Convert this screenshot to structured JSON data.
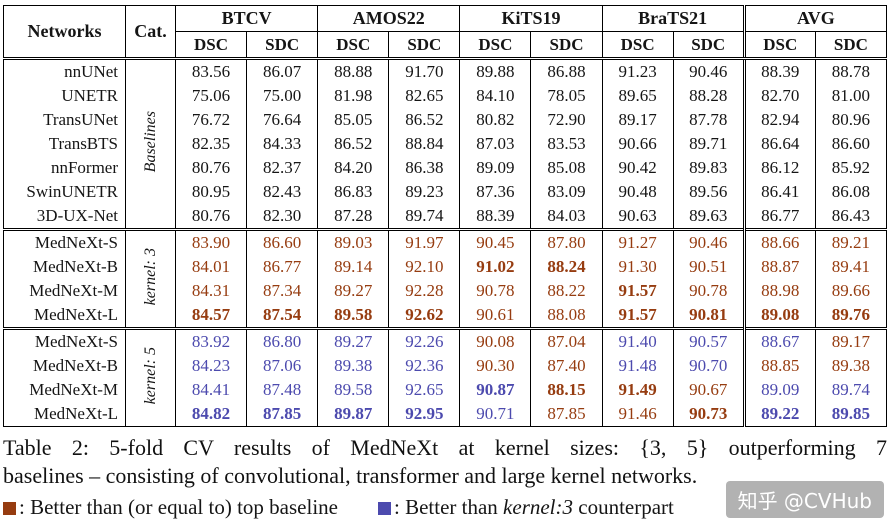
{
  "colors": {
    "maroon": "#963c10",
    "blue": "#4c4aae"
  },
  "table": {
    "header": {
      "networks": "Networks",
      "cat": "Cat.",
      "groups": [
        "BTCV",
        "AMOS22",
        "KiTS19",
        "BraTS21",
        "AVG"
      ],
      "metrics": [
        "DSC",
        "SDC"
      ]
    },
    "blocks": [
      {
        "cat": "Baselines",
        "rows": [
          {
            "net": "nnUNet",
            "cells": [
              [
                "83.56"
              ],
              [
                "86.07"
              ],
              [
                "88.88"
              ],
              [
                "91.70"
              ],
              [
                "89.88"
              ],
              [
                "86.88"
              ],
              [
                "91.23"
              ],
              [
                "90.46"
              ],
              [
                "88.39"
              ],
              [
                "88.78"
              ]
            ]
          },
          {
            "net": "UNETR",
            "cells": [
              [
                "75.06"
              ],
              [
                "75.00"
              ],
              [
                "81.98"
              ],
              [
                "82.65"
              ],
              [
                "84.10"
              ],
              [
                "78.05"
              ],
              [
                "89.65"
              ],
              [
                "88.28"
              ],
              [
                "82.70"
              ],
              [
                "81.00"
              ]
            ]
          },
          {
            "net": "TransUNet",
            "cells": [
              [
                "76.72"
              ],
              [
                "76.64"
              ],
              [
                "85.05"
              ],
              [
                "86.52"
              ],
              [
                "80.82"
              ],
              [
                "72.90"
              ],
              [
                "89.17"
              ],
              [
                "87.78"
              ],
              [
                "82.94"
              ],
              [
                "80.96"
              ]
            ]
          },
          {
            "net": "TransBTS",
            "cells": [
              [
                "82.35"
              ],
              [
                "84.33"
              ],
              [
                "86.52"
              ],
              [
                "88.84"
              ],
              [
                "87.03"
              ],
              [
                "83.53"
              ],
              [
                "90.66"
              ],
              [
                "89.71"
              ],
              [
                "86.64"
              ],
              [
                "86.60"
              ]
            ]
          },
          {
            "net": "nnFormer",
            "cells": [
              [
                "80.76"
              ],
              [
                "82.37"
              ],
              [
                "84.20"
              ],
              [
                "86.38"
              ],
              [
                "89.09"
              ],
              [
                "85.08"
              ],
              [
                "90.42"
              ],
              [
                "89.83"
              ],
              [
                "86.12"
              ],
              [
                "85.92"
              ]
            ]
          },
          {
            "net": "SwinUNETR",
            "cells": [
              [
                "80.95"
              ],
              [
                "82.43"
              ],
              [
                "86.83"
              ],
              [
                "89.23"
              ],
              [
                "87.36"
              ],
              [
                "83.09"
              ],
              [
                "90.48"
              ],
              [
                "89.56"
              ],
              [
                "86.41"
              ],
              [
                "86.08"
              ]
            ]
          },
          {
            "net": "3D-UX-Net",
            "cells": [
              [
                "80.76"
              ],
              [
                "82.30"
              ],
              [
                "87.28"
              ],
              [
                "89.74"
              ],
              [
                "88.39"
              ],
              [
                "84.03"
              ],
              [
                "90.63"
              ],
              [
                "89.63"
              ],
              [
                "86.77"
              ],
              [
                "86.43"
              ]
            ]
          }
        ]
      },
      {
        "cat": "kernel: 3",
        "rows": [
          {
            "net": "MedNeXt-S",
            "cells": [
              [
                "83.90",
                "mr",
                0
              ],
              [
                "86.60",
                "mr",
                0
              ],
              [
                "89.03",
                "mr",
                0
              ],
              [
                "91.97",
                "mr",
                0
              ],
              [
                "90.45",
                "mr",
                0
              ],
              [
                "87.80",
                "mr",
                0
              ],
              [
                "91.27",
                "mr",
                0
              ],
              [
                "90.46",
                "mr",
                0
              ],
              [
                "88.66",
                "mr",
                0
              ],
              [
                "89.21",
                "mr",
                0
              ]
            ]
          },
          {
            "net": "MedNeXt-B",
            "cells": [
              [
                "84.01",
                "mr",
                0
              ],
              [
                "86.77",
                "mr",
                0
              ],
              [
                "89.14",
                "mr",
                0
              ],
              [
                "92.10",
                "mr",
                0
              ],
              [
                "91.02",
                "mr",
                1
              ],
              [
                "88.24",
                "mr",
                1
              ],
              [
                "91.30",
                "mr",
                0
              ],
              [
                "90.51",
                "mr",
                0
              ],
              [
                "88.87",
                "mr",
                0
              ],
              [
                "89.41",
                "mr",
                0
              ]
            ]
          },
          {
            "net": "MedNeXt-M",
            "cells": [
              [
                "84.31",
                "mr",
                0
              ],
              [
                "87.34",
                "mr",
                0
              ],
              [
                "89.27",
                "mr",
                0
              ],
              [
                "92.28",
                "mr",
                0
              ],
              [
                "90.78",
                "mr",
                0
              ],
              [
                "88.22",
                "mr",
                0
              ],
              [
                "91.57",
                "mr",
                1
              ],
              [
                "90.78",
                "mr",
                0
              ],
              [
                "88.98",
                "mr",
                0
              ],
              [
                "89.66",
                "mr",
                0
              ]
            ]
          },
          {
            "net": "MedNeXt-L",
            "cells": [
              [
                "84.57",
                "mr",
                1
              ],
              [
                "87.54",
                "mr",
                1
              ],
              [
                "89.58",
                "mr",
                1
              ],
              [
                "92.62",
                "mr",
                1
              ],
              [
                "90.61",
                "mr",
                0
              ],
              [
                "88.08",
                "mr",
                0
              ],
              [
                "91.57",
                "mr",
                1
              ],
              [
                "90.81",
                "mr",
                1
              ],
              [
                "89.08",
                "mr",
                1
              ],
              [
                "89.76",
                "mr",
                1
              ]
            ]
          }
        ]
      },
      {
        "cat": "kernel: 5",
        "rows": [
          {
            "net": "MedNeXt-S",
            "cells": [
              [
                "83.92",
                "bl",
                0
              ],
              [
                "86.80",
                "bl",
                0
              ],
              [
                "89.27",
                "bl",
                0
              ],
              [
                "92.26",
                "bl",
                0
              ],
              [
                "90.08",
                "mr",
                0
              ],
              [
                "87.04",
                "mr",
                0
              ],
              [
                "91.40",
                "bl",
                0
              ],
              [
                "90.57",
                "bl",
                0
              ],
              [
                "88.67",
                "bl",
                0
              ],
              [
                "89.17",
                "mr",
                0
              ]
            ]
          },
          {
            "net": "MedNeXt-B",
            "cells": [
              [
                "84.23",
                "bl",
                0
              ],
              [
                "87.06",
                "bl",
                0
              ],
              [
                "89.38",
                "bl",
                0
              ],
              [
                "92.36",
                "bl",
                0
              ],
              [
                "90.30",
                "mr",
                0
              ],
              [
                "87.40",
                "mr",
                0
              ],
              [
                "91.48",
                "bl",
                0
              ],
              [
                "90.70",
                "bl",
                0
              ],
              [
                "88.85",
                "mr",
                0
              ],
              [
                "89.38",
                "mr",
                0
              ]
            ]
          },
          {
            "net": "MedNeXt-M",
            "cells": [
              [
                "84.41",
                "bl",
                0
              ],
              [
                "87.48",
                "bl",
                0
              ],
              [
                "89.58",
                "bl",
                0
              ],
              [
                "92.65",
                "bl",
                0
              ],
              [
                "90.87",
                "bl",
                1
              ],
              [
                "88.15",
                "mr",
                1
              ],
              [
                "91.49",
                "mr",
                1
              ],
              [
                "90.67",
                "mr",
                0
              ],
              [
                "89.09",
                "bl",
                0
              ],
              [
                "89.74",
                "bl",
                0
              ]
            ]
          },
          {
            "net": "MedNeXt-L",
            "cells": [
              [
                "84.82",
                "bl",
                1
              ],
              [
                "87.85",
                "bl",
                1
              ],
              [
                "89.87",
                "bl",
                1
              ],
              [
                "92.95",
                "bl",
                1
              ],
              [
                "90.71",
                "bl",
                0
              ],
              [
                "87.85",
                "mr",
                0
              ],
              [
                "91.46",
                "mr",
                0
              ],
              [
                "90.73",
                "mr",
                1
              ],
              [
                "89.22",
                "bl",
                1
              ],
              [
                "89.85",
                "bl",
                1
              ]
            ]
          }
        ]
      }
    ]
  },
  "caption": {
    "line1": "Table 2: 5-fold CV results of MedNeXt at kernel sizes: {3, 5} outperforming 7",
    "line2": "baselines – consisting of convolutional, transformer and large kernel networks."
  },
  "legend": {
    "item1": ": Better than (or equal to) top baseline",
    "item2_prefix": ": Better than ",
    "item2_italic": "kernel:3",
    "item2_suffix": " counterpart"
  },
  "watermark": "知乎 @CVHub"
}
